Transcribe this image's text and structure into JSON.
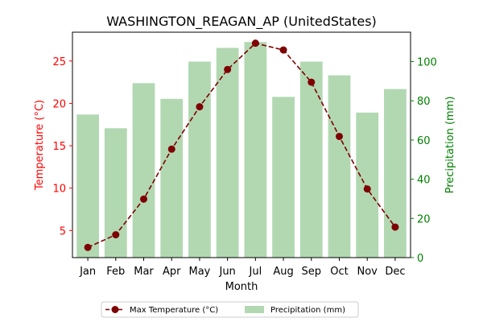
{
  "chart_data": {
    "type": "bar+line",
    "title": "WASHINGTON_REAGAN_AP (UnitedStates)",
    "xlabel": "Month",
    "categories": [
      "Jan",
      "Feb",
      "Mar",
      "Apr",
      "May",
      "Jun",
      "Jul",
      "Aug",
      "Sep",
      "Oct",
      "Nov",
      "Dec"
    ],
    "left_axis": {
      "label": "Temperature (°C)",
      "color": "#ff0000",
      "ylim": [
        1.8,
        28.4
      ],
      "ticks": [
        5,
        10,
        15,
        20,
        25
      ]
    },
    "right_axis": {
      "label": "Precipitation (mm)",
      "color": "#008000",
      "ylim": [
        0,
        115
      ],
      "ticks": [
        0,
        20,
        40,
        60,
        80,
        100
      ]
    },
    "series": [
      {
        "name": "Max Temperature (°C)",
        "type": "line",
        "axis": "left",
        "color": "#7f0000",
        "values": [
          3.0,
          4.5,
          8.7,
          14.6,
          19.6,
          24.0,
          27.1,
          26.3,
          22.5,
          16.1,
          9.9,
          5.4
        ]
      },
      {
        "name": "Precipitation (mm)",
        "type": "bar",
        "axis": "right",
        "color": "#b2d8b2",
        "values": [
          73,
          66,
          89,
          81,
          100,
          107,
          110,
          82,
          100,
          93,
          74,
          86
        ]
      }
    ],
    "legend": "bottom-center",
    "grid": false
  }
}
